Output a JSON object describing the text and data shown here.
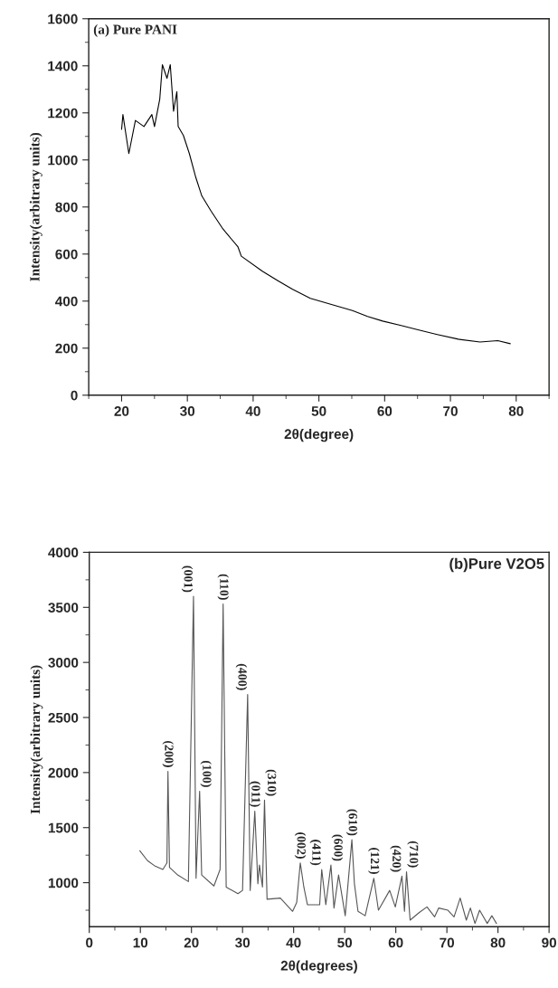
{
  "chart_data": [
    {
      "type": "line",
      "xlabel": "2θ(degree)",
      "ylabel": "Intensity(arbitrary units)",
      "xlim": [
        15,
        85
      ],
      "xticks": [
        20,
        30,
        40,
        50,
        60,
        70,
        80
      ],
      "ylim": [
        0,
        1600
      ],
      "yticks": [
        0,
        200,
        400,
        600,
        800,
        1000,
        1200,
        1400,
        1600
      ],
      "grid": false,
      "marker": "none",
      "line_style": "solid",
      "annotations": [
        "(a) Pure PANI"
      ],
      "series": [
        {
          "color": "#000000",
          "x": [
            20.0,
            20.2,
            21.1,
            22.1,
            23.4,
            24.6,
            25.0,
            25.8,
            26.2,
            26.9,
            27.4,
            27.9,
            28.4,
            28.6,
            29.4,
            30.3,
            31.3,
            32.2,
            33.6,
            35.4,
            37.7,
            38.2,
            41.4,
            43.7,
            46.0,
            48.7,
            51.9,
            55.1,
            57.4,
            59.7,
            62.5,
            65.2,
            68.0,
            71.2,
            74.5,
            77.2,
            79.1
          ],
          "values": [
            1130,
            1193,
            1027,
            1168,
            1142,
            1193,
            1142,
            1258,
            1405,
            1347,
            1405,
            1207,
            1290,
            1142,
            1104,
            1027,
            924,
            847,
            783,
            707,
            630,
            591,
            527,
            488,
            450,
            412,
            386,
            360,
            335,
            315,
            296,
            277,
            258,
            238,
            226,
            232,
            219
          ]
        }
      ]
    },
    {
      "type": "line",
      "xlabel": "2θ(degrees)",
      "ylabel": "Intensity(arbitrary units)",
      "xlim": [
        0,
        90
      ],
      "xticks": [
        0,
        10,
        20,
        30,
        40,
        50,
        60,
        70,
        80,
        90
      ],
      "ylim": [
        600,
        4000
      ],
      "yticks": [
        1000,
        1500,
        2000,
        2500,
        3000,
        3500,
        4000
      ],
      "grid": false,
      "marker": "none",
      "line_style": "solid",
      "annotations": [
        "(b)Pure V2O5",
        {
          "text": "(200)",
          "x": 15.4,
          "y": 2010
        },
        {
          "text": "(001)",
          "x": 20.4,
          "y": 3600
        },
        {
          "text": "(100)",
          "x": 21.6,
          "y": 1830
        },
        {
          "text": "(110)",
          "x": 26.2,
          "y": 3530
        },
        {
          "text": "(400)",
          "x": 31.0,
          "y": 2710
        },
        {
          "text": "(011)",
          "x": 32.4,
          "y": 1650
        },
        {
          "text": "(310)",
          "x": 34.3,
          "y": 1750
        },
        {
          "text": "(002)",
          "x": 41.3,
          "y": 1180
        },
        {
          "text": "(411)",
          "x": 45.5,
          "y": 1120
        },
        {
          "text": "(600)",
          "x": 47.3,
          "y": 1160
        },
        {
          "text": "(610)",
          "x": 51.4,
          "y": 1390
        },
        {
          "text": "(121)",
          "x": 55.7,
          "y": 1040
        },
        {
          "text": "(420)",
          "x": 61.2,
          "y": 1060
        },
        {
          "text": "(710)",
          "x": 62.1,
          "y": 1100
        }
      ],
      "series": [
        {
          "color": "#555555",
          "x": [
            9.9,
            11.4,
            12.9,
            14.4,
            15.2,
            15.4,
            15.7,
            17.3,
            19.4,
            20.4,
            20.9,
            21.6,
            22.0,
            24.4,
            25.6,
            26.2,
            26.8,
            29.1,
            30.0,
            31.0,
            31.5,
            32.4,
            33.0,
            33.3,
            33.9,
            34.3,
            34.8,
            37.4,
            39.8,
            40.6,
            41.3,
            42.0,
            42.7,
            45.1,
            45.5,
            46.3,
            47.3,
            47.9,
            48.8,
            50.1,
            51.4,
            51.9,
            52.6,
            54.0,
            55.7,
            56.6,
            58.8,
            59.9,
            61.2,
            61.7,
            62.1,
            62.8,
            64.6,
            66.1,
            67.6,
            68.4,
            70.2,
            71.4,
            72.6,
            73.8,
            74.6,
            75.5,
            76.4,
            77.9,
            78.8,
            79.7
          ],
          "values": [
            1290,
            1200,
            1150,
            1120,
            1180,
            2010,
            1140,
            1070,
            1010,
            3600,
            1040,
            1830,
            1070,
            970,
            1120,
            3530,
            960,
            900,
            930,
            2710,
            930,
            1650,
            990,
            1160,
            960,
            1750,
            850,
            860,
            740,
            820,
            1180,
            960,
            800,
            800,
            1120,
            800,
            1160,
            770,
            1070,
            700,
            1390,
            990,
            740,
            700,
            1040,
            750,
            930,
            780,
            1060,
            740,
            1100,
            660,
            730,
            780,
            690,
            770,
            750,
            690,
            860,
            660,
            770,
            630,
            750,
            630,
            700,
            630
          ]
        }
      ]
    }
  ]
}
